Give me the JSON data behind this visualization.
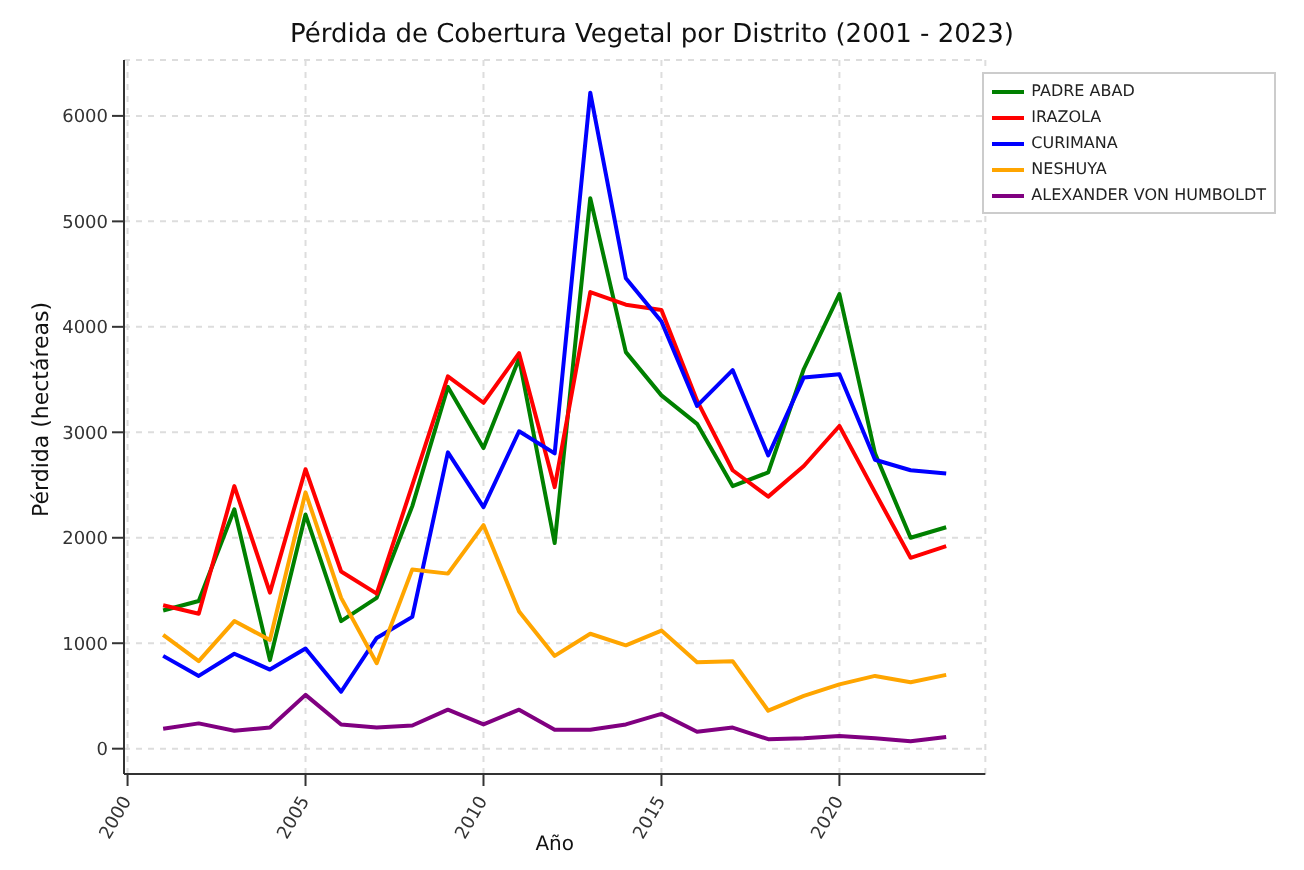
{
  "chart_data": {
    "type": "line",
    "title": "Pérdida de Cobertura Vegetal por Distrito (2001 - 2023)",
    "xlabel": "Año",
    "ylabel": "Pérdida (hectáreas)",
    "x": [
      2001,
      2002,
      2003,
      2004,
      2005,
      2006,
      2007,
      2008,
      2009,
      2010,
      2011,
      2012,
      2013,
      2014,
      2015,
      2016,
      2017,
      2018,
      2019,
      2020,
      2021,
      2022,
      2023
    ],
    "series": [
      {
        "name": "PADRE ABAD",
        "color": "#008000",
        "values": [
          1310,
          1400,
          2270,
          840,
          2220,
          1210,
          1430,
          2300,
          3430,
          2850,
          3700,
          1950,
          5220,
          3760,
          3350,
          3080,
          2490,
          2620,
          3600,
          4310,
          2800,
          2000,
          2100
        ]
      },
      {
        "name": "IRAZOLA",
        "color": "#ff0000",
        "values": [
          1360,
          1280,
          2490,
          1480,
          2650,
          1680,
          1470,
          2500,
          3530,
          3280,
          3750,
          2480,
          4330,
          4210,
          4160,
          3300,
          2640,
          2390,
          2680,
          3060,
          2430,
          1810,
          1920
        ]
      },
      {
        "name": "CURIMANA",
        "color": "#0000ff",
        "values": [
          880,
          690,
          900,
          750,
          950,
          540,
          1050,
          1250,
          2810,
          2290,
          3010,
          2800,
          6220,
          4460,
          4050,
          3250,
          3590,
          2780,
          3520,
          3550,
          2740,
          2640,
          2610
        ]
      },
      {
        "name": "NESHUYA",
        "color": "#ffa500",
        "values": [
          1080,
          830,
          1210,
          1030,
          2430,
          1430,
          810,
          1700,
          1660,
          2120,
          1300,
          880,
          1090,
          980,
          1120,
          820,
          830,
          360,
          500,
          610,
          690,
          630,
          700
        ]
      },
      {
        "name": "ALEXANDER VON HUMBOLDT",
        "color": "#800080",
        "values": [
          190,
          240,
          170,
          200,
          510,
          230,
          200,
          220,
          370,
          230,
          370,
          180,
          180,
          230,
          330,
          160,
          200,
          90,
          100,
          120,
          100,
          70,
          110
        ]
      }
    ],
    "xlim": [
      1999.9,
      2024.1
    ],
    "xticks": [
      2000,
      2005,
      2010,
      2015,
      2020
    ],
    "ylim": [
      -240,
      6530
    ],
    "yticks": [
      0,
      1000,
      2000,
      3000,
      4000,
      5000,
      6000
    ],
    "grid": true,
    "legend": "top right",
    "marker": "none",
    "line_style": "solid"
  }
}
